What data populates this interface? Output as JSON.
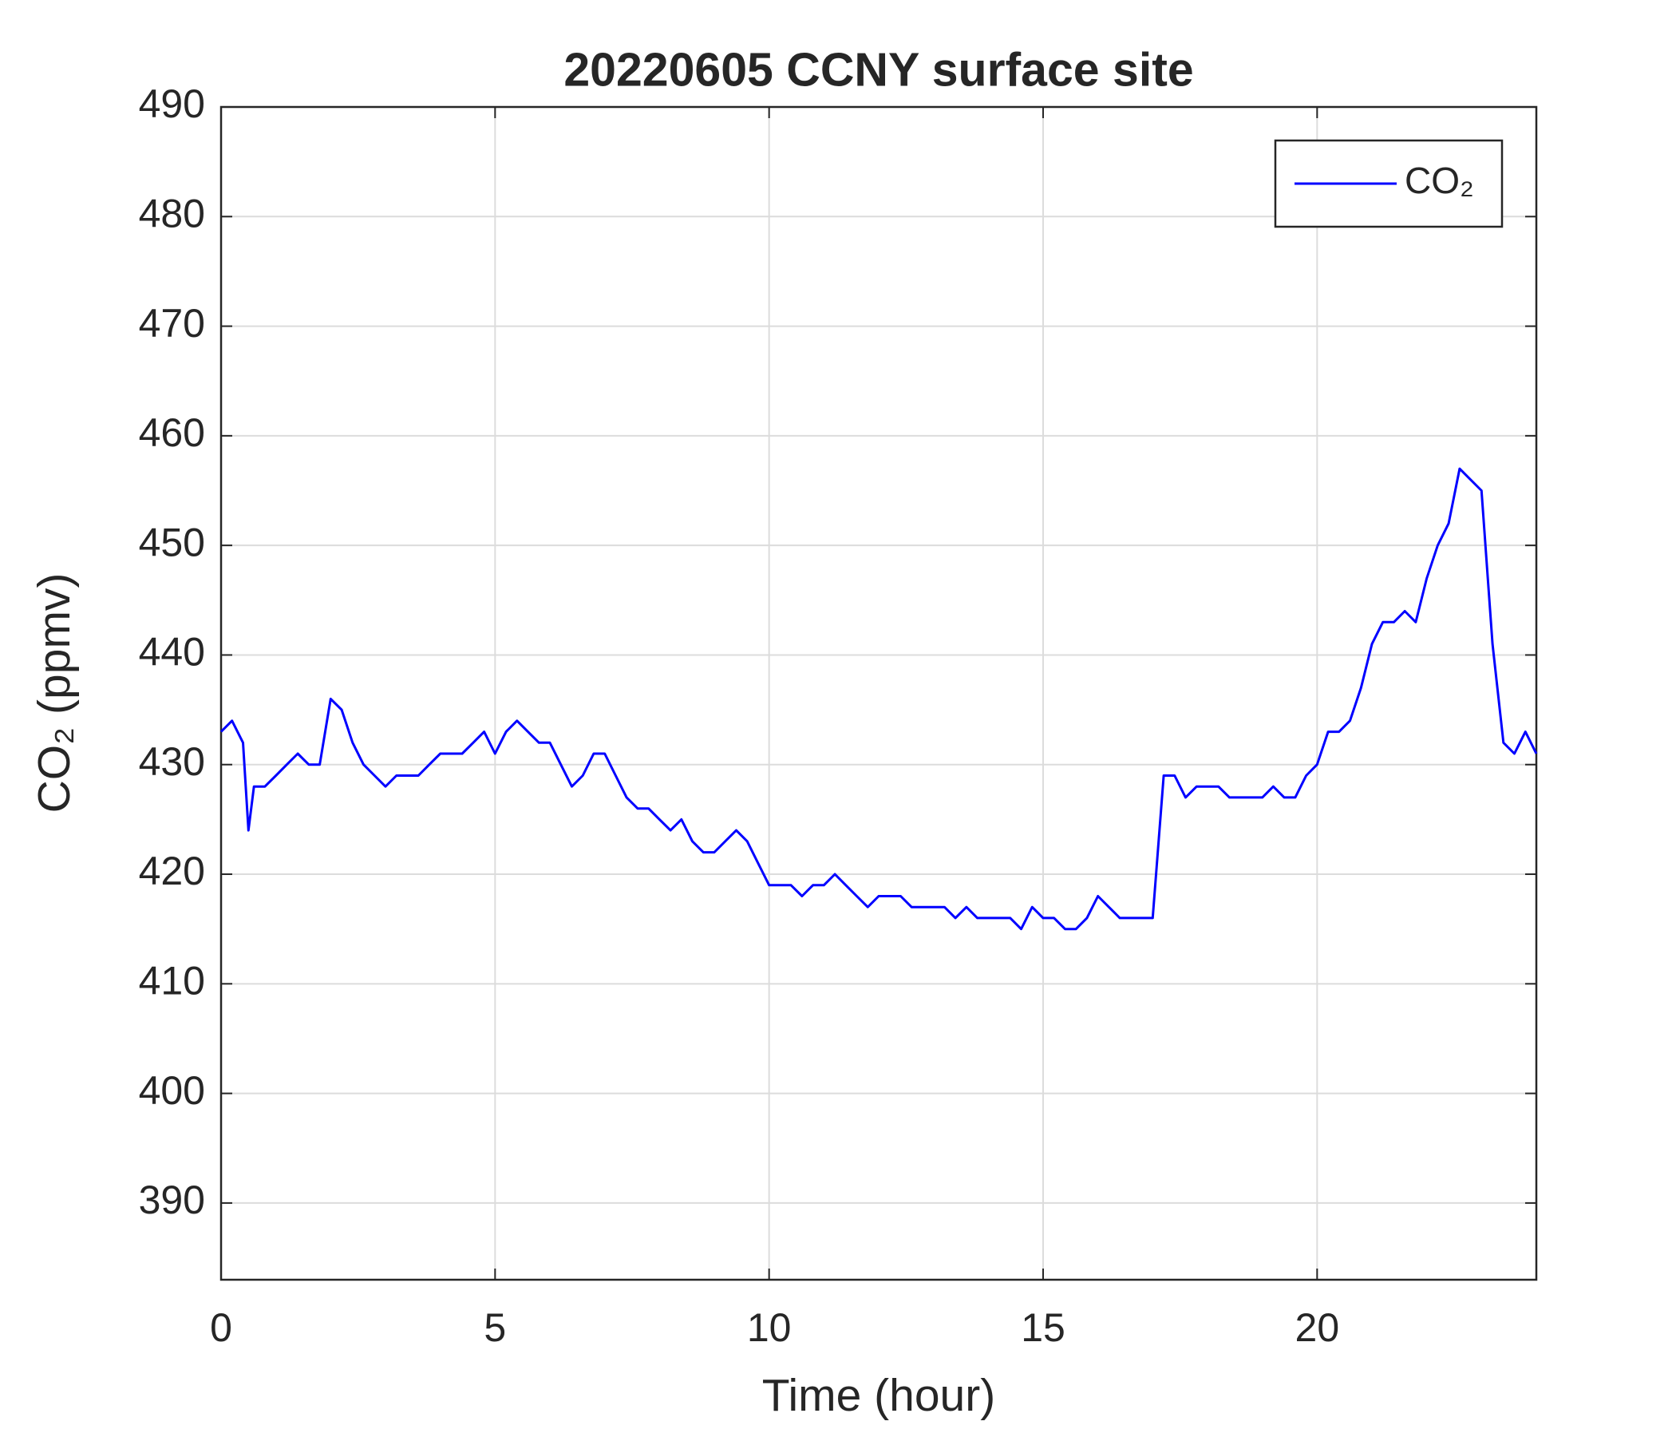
{
  "chart_data": {
    "type": "line",
    "title": "20220605 CCNY surface site",
    "xlabel": "Time (hour)",
    "ylabel": "CO₂ (ppmv)",
    "x": [
      0,
      0.2,
      0.4,
      0.5,
      0.6,
      0.8,
      1,
      1.2,
      1.4,
      1.6,
      1.8,
      2,
      2.2,
      2.4,
      2.6,
      2.8,
      3,
      3.2,
      3.4,
      3.6,
      3.8,
      4,
      4.2,
      4.4,
      4.6,
      4.8,
      5,
      5.2,
      5.4,
      5.6,
      5.8,
      6,
      6.2,
      6.4,
      6.6,
      6.8,
      7,
      7.2,
      7.4,
      7.6,
      7.8,
      8,
      8.2,
      8.4,
      8.6,
      8.8,
      9,
      9.2,
      9.4,
      9.6,
      9.8,
      10,
      10.2,
      10.4,
      10.6,
      10.8,
      11,
      11.2,
      11.4,
      11.6,
      11.8,
      12,
      12.2,
      12.4,
      12.6,
      12.8,
      13,
      13.2,
      13.4,
      13.6,
      13.8,
      14,
      14.2,
      14.4,
      14.6,
      14.8,
      15,
      15.2,
      15.4,
      15.6,
      15.8,
      16,
      16.2,
      16.4,
      16.6,
      16.8,
      17,
      17.2,
      17.4,
      17.6,
      17.8,
      18,
      18.2,
      18.4,
      18.6,
      18.8,
      19,
      19.2,
      19.4,
      19.6,
      19.8,
      20,
      20.2,
      20.4,
      20.6,
      20.8,
      21,
      21.2,
      21.4,
      21.6,
      21.8,
      22,
      22.2,
      22.4,
      22.6,
      22.8,
      23,
      23.2,
      23.4,
      23.6,
      23.8,
      24
    ],
    "series": [
      {
        "name": "CO₂",
        "color": "#0000ff",
        "values": [
          433,
          434,
          432,
          424,
          428,
          428,
          429,
          430,
          431,
          430,
          430,
          436,
          435,
          432,
          430,
          429,
          428,
          429,
          429,
          429,
          430,
          431,
          431,
          431,
          432,
          433,
          431,
          433,
          434,
          433,
          432,
          432,
          430,
          428,
          429,
          431,
          431,
          429,
          427,
          426,
          426,
          425,
          424,
          425,
          423,
          422,
          422,
          423,
          424,
          423,
          421,
          419,
          419,
          419,
          418,
          419,
          419,
          420,
          419,
          418,
          417,
          418,
          418,
          418,
          417,
          417,
          417,
          417,
          416,
          417,
          416,
          416,
          416,
          416,
          415,
          417,
          416,
          416,
          415,
          415,
          416,
          418,
          417,
          416,
          416,
          416,
          416,
          429,
          429,
          427,
          428,
          428,
          428,
          427,
          427,
          427,
          427,
          428,
          427,
          427,
          429,
          430,
          433,
          433,
          434,
          437,
          441,
          443,
          443,
          444,
          443,
          447,
          450,
          452,
          457,
          456,
          455,
          441,
          432,
          431,
          433,
          431
        ]
      }
    ],
    "xlim": [
      0,
      24
    ],
    "ylim": [
      383,
      490
    ],
    "xticks": [
      0,
      5,
      10,
      15,
      20
    ],
    "yticks": [
      390,
      400,
      410,
      420,
      430,
      440,
      450,
      460,
      470,
      480,
      490
    ],
    "grid": true,
    "legend": "upper right"
  }
}
